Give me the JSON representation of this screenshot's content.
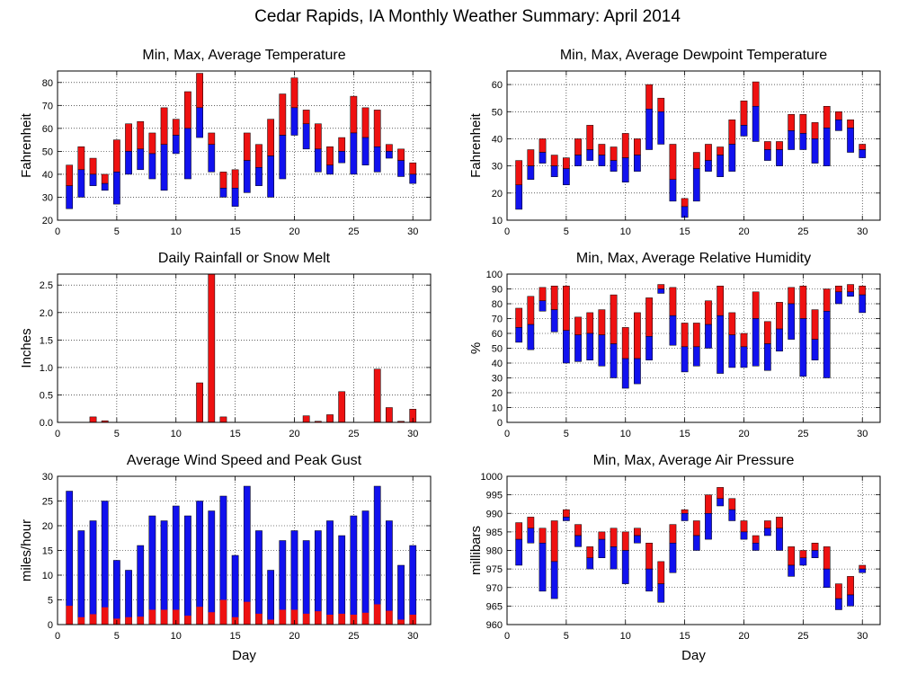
{
  "title": "Cedar Rapids, IA Monthly Weather Summary: April 2014",
  "colors": {
    "upper": "#ee1111",
    "lower": "#1111ee",
    "frame": "#000000",
    "grid": "#000000"
  },
  "days": [
    1,
    2,
    3,
    4,
    5,
    6,
    7,
    8,
    9,
    10,
    11,
    12,
    13,
    14,
    15,
    16,
    17,
    18,
    19,
    20,
    21,
    22,
    23,
    24,
    25,
    26,
    27,
    28,
    29,
    30
  ],
  "chart_data": [
    {
      "type": "bar",
      "title": "Min, Max, Average Temperature",
      "xlabel": "",
      "ylabel": "Fahrenheit",
      "xlim": [
        0,
        31.5
      ],
      "ylim": [
        20,
        85
      ],
      "yticks": [
        20,
        30,
        40,
        50,
        60,
        70,
        80
      ],
      "xticks": [
        0,
        5,
        10,
        15,
        20,
        25,
        30
      ],
      "grid": true,
      "series": [
        {
          "role": "max",
          "values": [
            44,
            52,
            47,
            40,
            55,
            62,
            63,
            58,
            69,
            64,
            76,
            84,
            58,
            41,
            42,
            58,
            53,
            64,
            75,
            82,
            68,
            62,
            52,
            56,
            74,
            69,
            68,
            53,
            51,
            45
          ]
        },
        {
          "role": "avg",
          "values": [
            35,
            42,
            40,
            36,
            41,
            50,
            51,
            49,
            53,
            57,
            60,
            69,
            53,
            34,
            34,
            46,
            43,
            48,
            57,
            69,
            62,
            51,
            44,
            50,
            58,
            56,
            52,
            50,
            46,
            40
          ]
        },
        {
          "role": "min",
          "values": [
            25,
            30,
            35,
            33,
            27,
            40,
            42,
            38,
            33,
            49,
            38,
            56,
            41,
            30,
            26,
            32,
            35,
            30,
            38,
            57,
            51,
            41,
            40,
            45,
            40,
            44,
            41,
            47,
            39,
            36
          ]
        }
      ]
    },
    {
      "type": "bar",
      "title": "Min, Max, Average Dewpoint Temperature",
      "xlabel": "",
      "ylabel": "Fahrenheit",
      "xlim": [
        0,
        31.5
      ],
      "ylim": [
        10,
        65
      ],
      "yticks": [
        10,
        20,
        30,
        40,
        50,
        60
      ],
      "xticks": [
        0,
        5,
        10,
        15,
        20,
        25,
        30
      ],
      "grid": true,
      "series": [
        {
          "role": "max",
          "values": [
            32,
            36,
            40,
            34,
            33,
            40,
            45,
            38,
            37,
            42,
            40,
            60,
            55,
            38,
            18,
            35,
            38,
            37,
            47,
            54,
            61,
            39,
            39,
            49,
            49,
            46,
            52,
            50,
            47,
            38
          ]
        },
        {
          "role": "avg",
          "values": [
            23,
            30,
            35,
            30,
            29,
            34,
            36,
            34,
            32,
            33,
            34,
            51,
            50,
            25,
            15,
            29,
            32,
            34,
            38,
            45,
            52,
            36,
            36,
            43,
            42,
            40,
            44,
            47,
            44,
            36
          ]
        },
        {
          "role": "min",
          "values": [
            14,
            25,
            31,
            26,
            23,
            30,
            32,
            30,
            28,
            24,
            28,
            36,
            38,
            17,
            11,
            17,
            28,
            26,
            28,
            41,
            39,
            32,
            30,
            36,
            36,
            31,
            30,
            43,
            35,
            33
          ]
        }
      ]
    },
    {
      "type": "bar",
      "title": "Daily Rainfall or Snow Melt",
      "xlabel": "",
      "ylabel": "Inches",
      "xlim": [
        0,
        31.5
      ],
      "ylim": [
        0,
        2.7
      ],
      "yticks": [
        0,
        0.5,
        1.0,
        1.5,
        2.0,
        2.5
      ],
      "yticklabels": [
        "0.0",
        "0.5",
        "1.0",
        "1.5",
        "2.0",
        "2.5"
      ],
      "xticks": [
        0,
        5,
        10,
        15,
        20,
        25,
        30
      ],
      "grid": true,
      "series": [
        {
          "role": "precip",
          "values": [
            0,
            0,
            0.1,
            0.03,
            0,
            0,
            0,
            0,
            0,
            0,
            0,
            0.72,
            2.7,
            0.1,
            0,
            0,
            0,
            0,
            0,
            0,
            0.12,
            0.02,
            0.14,
            0.56,
            0,
            0,
            0.97,
            0.27,
            0.02,
            0.24
          ]
        }
      ]
    },
    {
      "type": "bar",
      "title": "Min, Max, Average Relative Humidity",
      "xlabel": "",
      "ylabel": "%",
      "xlim": [
        0,
        31.5
      ],
      "ylim": [
        0,
        100
      ],
      "yticks": [
        0,
        10,
        20,
        30,
        40,
        50,
        60,
        70,
        80,
        90,
        100
      ],
      "xticks": [
        0,
        5,
        10,
        15,
        20,
        25,
        30
      ],
      "grid": true,
      "series": [
        {
          "role": "max",
          "values": [
            77,
            85,
            91,
            92,
            92,
            71,
            74,
            76,
            86,
            64,
            74,
            84,
            93,
            91,
            67,
            67,
            82,
            92,
            74,
            60,
            88,
            68,
            81,
            91,
            92,
            76,
            90,
            92,
            93,
            92
          ]
        },
        {
          "role": "avg",
          "values": [
            64,
            66,
            82,
            76,
            62,
            59,
            60,
            59,
            53,
            43,
            43,
            58,
            90,
            72,
            51,
            51,
            66,
            72,
            59,
            51,
            70,
            53,
            63,
            80,
            70,
            56,
            75,
            88,
            88,
            86
          ]
        },
        {
          "role": "min",
          "values": [
            54,
            49,
            75,
            61,
            40,
            41,
            42,
            38,
            30,
            23,
            26,
            42,
            87,
            52,
            34,
            38,
            50,
            33,
            37,
            37,
            38,
            35,
            48,
            56,
            31,
            42,
            30,
            80,
            85,
            74
          ]
        }
      ]
    },
    {
      "type": "bar",
      "title": "Average Wind Speed and Peak Gust",
      "xlabel": "Day",
      "ylabel": "miles/hour",
      "xlim": [
        0,
        31.5
      ],
      "ylim": [
        0,
        30
      ],
      "yticks": [
        0,
        5,
        10,
        15,
        20,
        25,
        30
      ],
      "xticks": [
        0,
        5,
        10,
        15,
        20,
        25,
        30
      ],
      "grid": true,
      "series": [
        {
          "role": "gust",
          "values": [
            27,
            19,
            21,
            25,
            13,
            11,
            16,
            22,
            21,
            24,
            22,
            25,
            23,
            26,
            14,
            28,
            19,
            11,
            17,
            19,
            17,
            19,
            21,
            18,
            22,
            23,
            28,
            21,
            12,
            16
          ]
        },
        {
          "role": "avg",
          "values": [
            3.8,
            1.5,
            2.1,
            3.5,
            1.2,
            1.5,
            1.6,
            3.0,
            3.0,
            3.0,
            1.8,
            3.6,
            2.5,
            5.0,
            1.5,
            4.6,
            2.2,
            1.0,
            3.0,
            3.0,
            2.2,
            2.7,
            2.0,
            2.2,
            2.0,
            2.4,
            4.1,
            2.8,
            1.0,
            2.0
          ]
        }
      ]
    },
    {
      "type": "bar",
      "title": "Min, Max, Average Air Pressure",
      "xlabel": "Day",
      "ylabel": "millibars",
      "xlim": [
        0,
        31.5
      ],
      "ylim": [
        960,
        1000
      ],
      "yticks": [
        960,
        965,
        970,
        975,
        980,
        985,
        990,
        995,
        1000
      ],
      "xticks": [
        0,
        5,
        10,
        15,
        20,
        25,
        30
      ],
      "grid": true,
      "series": [
        {
          "role": "max",
          "values": [
            987.5,
            989,
            986,
            988,
            991,
            987,
            981,
            985,
            986,
            985,
            986,
            982,
            977,
            987,
            991,
            988,
            995,
            997,
            994,
            988,
            984,
            988,
            989,
            981,
            980,
            982,
            981,
            971,
            973,
            976
          ]
        },
        {
          "role": "avg",
          "values": [
            983,
            986,
            982,
            977,
            989,
            984,
            978,
            983,
            981,
            980,
            984,
            975,
            971,
            982,
            990,
            984,
            990,
            994,
            991,
            985,
            982,
            986,
            986,
            976,
            978,
            980,
            975,
            967,
            968,
            975
          ]
        },
        {
          "role": "min",
          "values": [
            976,
            982,
            969,
            967,
            988,
            981,
            975,
            978,
            975,
            971,
            982,
            969,
            966,
            974,
            988,
            980,
            983,
            992,
            988,
            983,
            980,
            984,
            980,
            973,
            976,
            978,
            970,
            964,
            965,
            974
          ]
        }
      ]
    }
  ]
}
